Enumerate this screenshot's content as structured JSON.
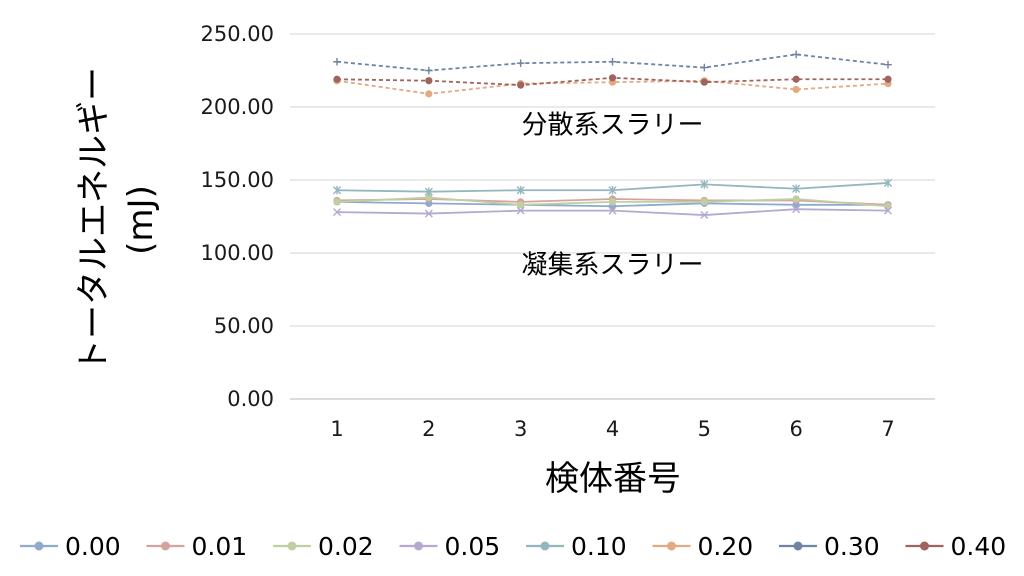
{
  "chart_data": {
    "type": "line",
    "title": "",
    "xlabel": "検体番号",
    "ylabel_line1": "トータルエネルギー",
    "ylabel_line2": "(mJ)",
    "x": [
      1,
      2,
      3,
      4,
      5,
      6,
      7
    ],
    "ylim": [
      0,
      250
    ],
    "yticks": [
      "0.00",
      "50.00",
      "100.00",
      "150.00",
      "200.00",
      "250.00"
    ],
    "grid": true,
    "legend_position": "bottom",
    "annotations": [
      {
        "text": "分散系スラリー",
        "x": 4,
        "y": 197
      },
      {
        "text": "凝集系スラリー",
        "x": 4,
        "y": 101
      }
    ],
    "series": [
      {
        "name": "0.00",
        "color": "#8eaacc",
        "dash": "none",
        "marker": "circle",
        "values": [
          135,
          134,
          133,
          132,
          134,
          133,
          133
        ]
      },
      {
        "name": "0.01",
        "color": "#d4a3a0",
        "dash": "none",
        "marker": "circle",
        "values": [
          136,
          137,
          135,
          137,
          136,
          136,
          133
        ]
      },
      {
        "name": "0.02",
        "color": "#bfcf9f",
        "dash": "none",
        "marker": "circle",
        "values": [
          135,
          138,
          133,
          135,
          135,
          137,
          132
        ]
      },
      {
        "name": "0.05",
        "color": "#b5a9cf",
        "dash": "none",
        "marker": "x",
        "values": [
          128,
          127,
          129,
          129,
          126,
          130,
          129
        ]
      },
      {
        "name": "0.10",
        "color": "#94b7bf",
        "dash": "none",
        "marker": "star",
        "values": [
          143,
          142,
          143,
          143,
          147,
          144,
          148
        ]
      },
      {
        "name": "0.20",
        "color": "#e2aa82",
        "dash": "dashed",
        "marker": "circle",
        "values": [
          218,
          209,
          216,
          217,
          218,
          212,
          216
        ]
      },
      {
        "name": "0.30",
        "color": "#6e84a3",
        "dash": "dashed",
        "marker": "plus",
        "values": [
          231,
          225,
          230,
          231,
          227,
          236,
          229
        ]
      },
      {
        "name": "0.40",
        "color": "#a0635e",
        "dash": "dashed",
        "marker": "circle",
        "values": [
          219,
          218,
          215,
          220,
          217,
          219,
          219
        ]
      }
    ]
  }
}
